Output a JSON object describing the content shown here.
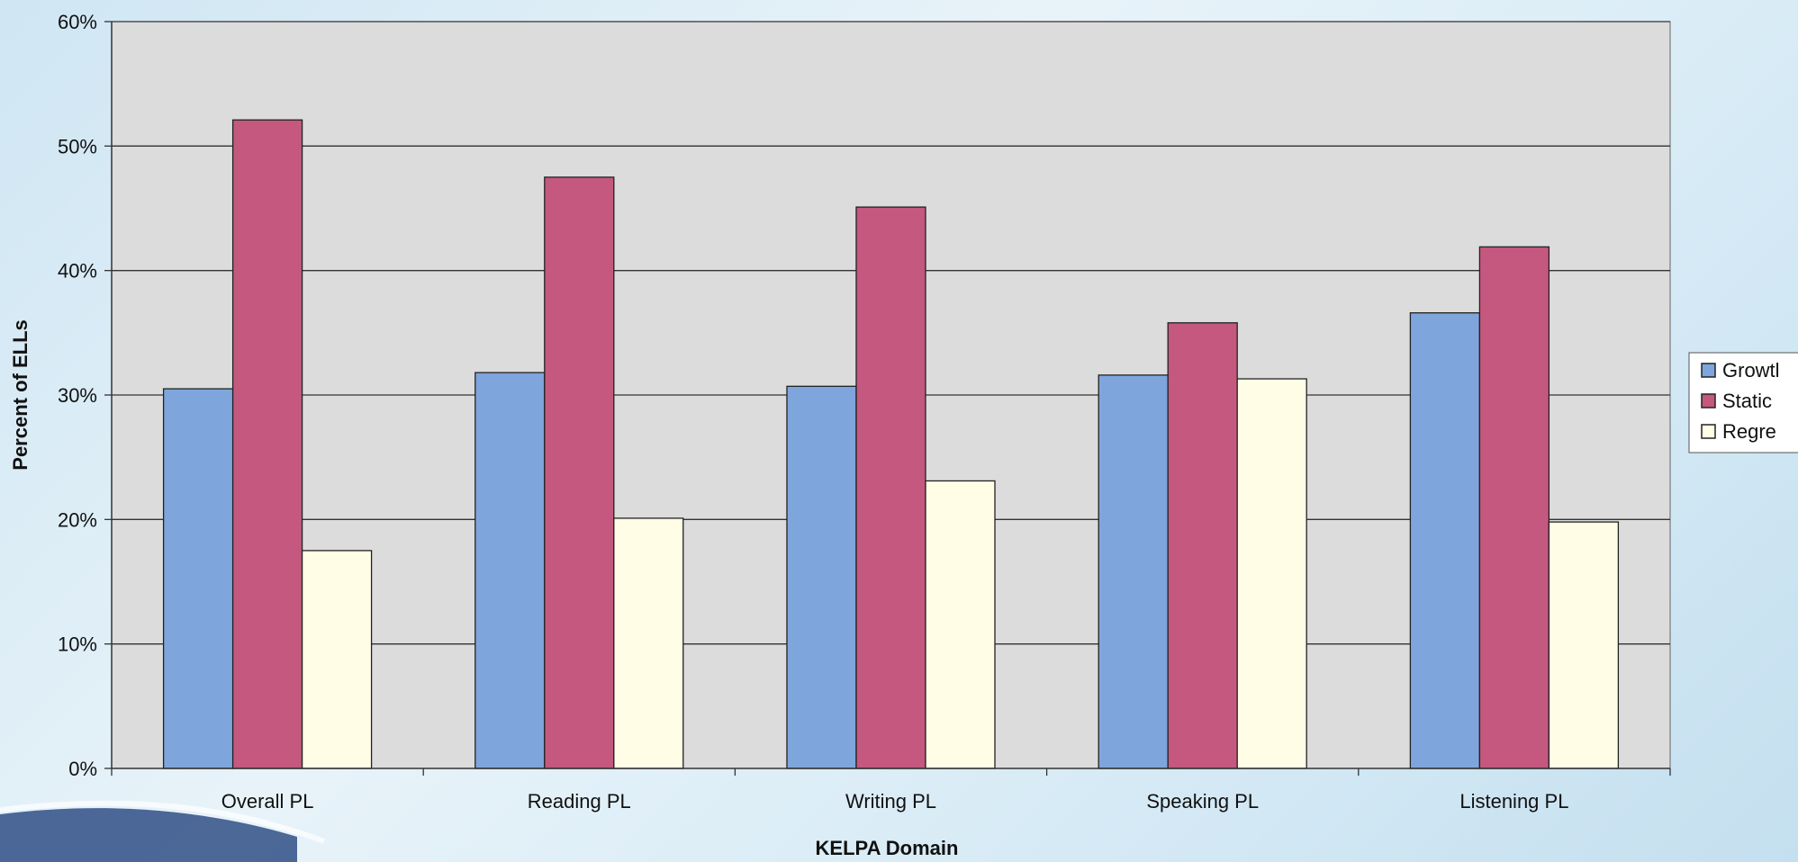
{
  "chart_data": {
    "type": "bar",
    "categories": [
      "Overall PL",
      "Reading PL",
      "Writing PL",
      "Speaking PL",
      "Listening PL"
    ],
    "series": [
      {
        "name": "Growth",
        "color": "#7ea6dc",
        "values": [
          30.5,
          31.8,
          30.7,
          31.6,
          36.6
        ]
      },
      {
        "name": "Static",
        "color": "#c4587e",
        "values": [
          52.1,
          47.5,
          45.1,
          35.8,
          41.9
        ]
      },
      {
        "name": "Regression",
        "color": "#fffde6",
        "values": [
          17.5,
          20.1,
          23.1,
          31.3,
          19.8
        ]
      }
    ],
    "legend_labels": [
      "Growtl",
      "Static",
      "Regre"
    ],
    "xlabel": "KELPA Domain",
    "ylabel": "Percent of ELLs",
    "ylim": [
      0,
      60
    ],
    "yticks": [
      "0%",
      "10%",
      "20%",
      "30%",
      "40%",
      "50%",
      "60%"
    ],
    "ytick_values": [
      0,
      10,
      20,
      30,
      40,
      50,
      60
    ],
    "grid": true,
    "legend_position": "right",
    "plot_background": "#dcdcdc"
  }
}
